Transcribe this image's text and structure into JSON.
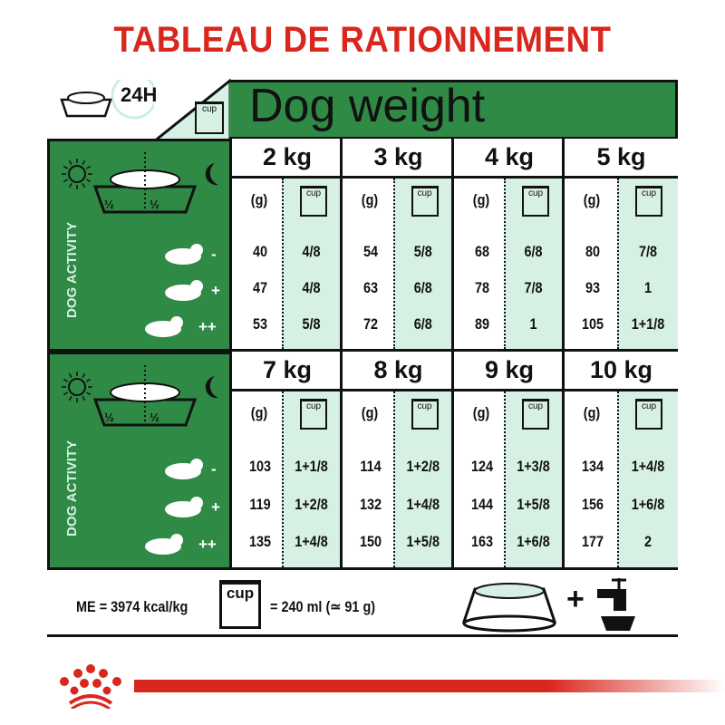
{
  "title": "TABLEAU DE RATIONNEMENT",
  "header": {
    "duration": "24H",
    "cup_label": "cup",
    "dog_weight": "Dog weight"
  },
  "left_panel": {
    "activity_label": "DOG ACTIVITY",
    "half": "½",
    "levels": [
      "-",
      "+",
      "++"
    ]
  },
  "column_headers": {
    "grams": "(g)",
    "cup": "cup"
  },
  "blocks": [
    {
      "weights": [
        "2 kg",
        "3 kg",
        "4 kg",
        "5 kg"
      ],
      "rows": [
        [
          [
            "40",
            "4/8"
          ],
          [
            "54",
            "5/8"
          ],
          [
            "68",
            "6/8"
          ],
          [
            "80",
            "7/8"
          ]
        ],
        [
          [
            "47",
            "4/8"
          ],
          [
            "63",
            "6/8"
          ],
          [
            "78",
            "7/8"
          ],
          [
            "93",
            "1"
          ]
        ],
        [
          [
            "53",
            "5/8"
          ],
          [
            "72",
            "6/8"
          ],
          [
            "89",
            "1"
          ],
          [
            "105",
            "1+1/8"
          ]
        ]
      ]
    },
    {
      "weights": [
        "7 kg",
        "8 kg",
        "9 kg",
        "10 kg"
      ],
      "rows": [
        [
          [
            "103",
            "1+1/8"
          ],
          [
            "114",
            "1+2/8"
          ],
          [
            "124",
            "1+3/8"
          ],
          [
            "134",
            "1+4/8"
          ]
        ],
        [
          [
            "119",
            "1+2/8"
          ],
          [
            "132",
            "1+4/8"
          ],
          [
            "144",
            "1+5/8"
          ],
          [
            "156",
            "1+6/8"
          ]
        ],
        [
          [
            "135",
            "1+4/8"
          ],
          [
            "150",
            "1+5/8"
          ],
          [
            "163",
            "1+6/8"
          ],
          [
            "177",
            "2"
          ]
        ]
      ]
    }
  ],
  "footer": {
    "energy": "ME = 3974 kcal/kg",
    "cup_label": "cup",
    "cup_equiv": "= 240 ml (≃ 91 g)",
    "plus": "+"
  },
  "colors": {
    "green": "#2f8a45",
    "mint": "#d6f0e3",
    "red": "#d9271e"
  },
  "brand": "Royal Canin"
}
